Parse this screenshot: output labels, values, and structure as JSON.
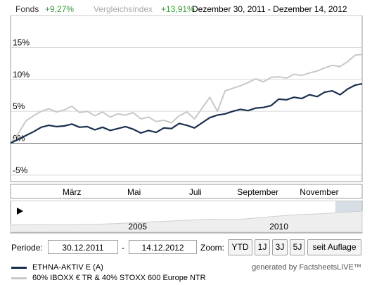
{
  "header": {
    "fonds_label": "Fonds",
    "fonds_value": "+9,27%",
    "index_label": "Vergleichsindex",
    "index_value": "+13,91%",
    "date_range": "Dezember 30, 2011 - Dezember 14, 2012"
  },
  "chart_data": {
    "type": "line",
    "ylim": [
      -6,
      20
    ],
    "yticks": [
      {
        "v": 15,
        "label": "15%"
      },
      {
        "v": 10,
        "label": "10%"
      },
      {
        "v": 5,
        "label": "5%"
      },
      {
        "v": 0,
        "label": "0%"
      },
      {
        "v": -5,
        "label": "-5%"
      }
    ],
    "xlim": [
      0,
      11.47
    ],
    "xticks": [
      {
        "v": 2.0,
        "label": "März"
      },
      {
        "v": 4.03,
        "label": "Mai"
      },
      {
        "v": 6.03,
        "label": "Juli"
      },
      {
        "v": 8.07,
        "label": "September"
      },
      {
        "v": 10.07,
        "label": "November"
      }
    ],
    "series": [
      {
        "name": "ETHNA-AKTIV E (A)",
        "color": "#1a2f4f",
        "x": [
          0,
          0.25,
          0.5,
          0.75,
          1.0,
          1.25,
          1.5,
          1.75,
          2.0,
          2.25,
          2.5,
          2.75,
          3.0,
          3.25,
          3.5,
          3.75,
          4.0,
          4.25,
          4.5,
          4.75,
          5.0,
          5.25,
          5.5,
          5.75,
          6.0,
          6.25,
          6.5,
          6.75,
          7.0,
          7.25,
          7.5,
          7.75,
          8.0,
          8.25,
          8.5,
          8.75,
          9.0,
          9.25,
          9.5,
          9.75,
          10.0,
          10.25,
          10.5,
          10.75,
          11.0,
          11.25,
          11.47
        ],
        "values": [
          0,
          0.6,
          1.2,
          1.8,
          2.5,
          2.8,
          2.6,
          2.7,
          3.0,
          2.5,
          2.6,
          2.1,
          2.5,
          2.0,
          2.3,
          2.6,
          2.2,
          1.6,
          2.0,
          1.7,
          2.4,
          2.3,
          3.1,
          2.8,
          2.4,
          3.2,
          4.0,
          4.4,
          4.6,
          5.0,
          5.3,
          5.1,
          5.5,
          5.6,
          5.9,
          6.9,
          6.8,
          7.2,
          7.0,
          7.6,
          7.3,
          8.0,
          8.2,
          7.6,
          8.5,
          9.1,
          9.3
        ]
      },
      {
        "name": "60% IBOXX € TR & 40% STOXX 600 Europe NTR",
        "color": "#c8c8c8",
        "x": [
          0,
          0.25,
          0.5,
          0.75,
          1.0,
          1.25,
          1.5,
          1.75,
          2.0,
          2.25,
          2.5,
          2.75,
          3.0,
          3.25,
          3.5,
          3.75,
          4.0,
          4.25,
          4.5,
          4.75,
          5.0,
          5.25,
          5.5,
          5.75,
          6.0,
          6.25,
          6.5,
          6.75,
          7.0,
          7.25,
          7.5,
          7.75,
          8.0,
          8.25,
          8.5,
          8.75,
          9.0,
          9.25,
          9.5,
          9.75,
          10.0,
          10.25,
          10.5,
          10.75,
          11.0,
          11.25,
          11.47
        ],
        "values": [
          0,
          1.5,
          3.5,
          4.3,
          5.0,
          5.4,
          4.9,
          5.2,
          5.8,
          4.8,
          5.0,
          4.3,
          4.9,
          4.1,
          4.6,
          4.4,
          4.8,
          3.8,
          4.1,
          3.4,
          3.6,
          3.2,
          4.3,
          4.9,
          3.8,
          5.5,
          7.2,
          5.0,
          8.2,
          8.6,
          9.0,
          9.5,
          10.1,
          9.6,
          10.3,
          10.4,
          10.2,
          10.8,
          10.6,
          11.0,
          11.3,
          11.8,
          12.2,
          12.0,
          12.8,
          13.8,
          13.91
        ]
      }
    ],
    "navigator": {
      "xticks": [
        {
          "year": 2005,
          "label": "2005"
        },
        {
          "year": 2010,
          "label": "2010"
        }
      ],
      "years": [
        2000.5,
        2012.95
      ],
      "selection": [
        2012.0,
        2012.95
      ],
      "profile": [
        [
          2000.5,
          0.1
        ],
        [
          2001.5,
          0.12
        ],
        [
          2002.5,
          0.11
        ],
        [
          2003.5,
          0.13
        ],
        [
          2004.5,
          0.18
        ],
        [
          2005.5,
          0.24
        ],
        [
          2006.5,
          0.3
        ],
        [
          2007.5,
          0.36
        ],
        [
          2008.5,
          0.34
        ],
        [
          2009.5,
          0.45
        ],
        [
          2010.5,
          0.55
        ],
        [
          2011.5,
          0.6
        ],
        [
          2012.95,
          0.72
        ]
      ]
    }
  },
  "controls": {
    "periode_label": "Periode:",
    "start_date": "30.12.2011",
    "separator": "-",
    "end_date": "14.12.2012",
    "zoom_label": "Zoom:",
    "zoom_buttons": [
      "YTD",
      "1J",
      "3J",
      "5J",
      "seit Auflage"
    ]
  },
  "legend": {
    "items": [
      {
        "label": "ETHNA-AKTIV E (A)",
        "color": "#1a2f4f"
      },
      {
        "label": "60% IBOXX € TR & 40% STOXX 600 Europe NTR",
        "color": "#c8c8c8"
      }
    ],
    "generated_by": "generated by FactsheetsLIVE™"
  }
}
